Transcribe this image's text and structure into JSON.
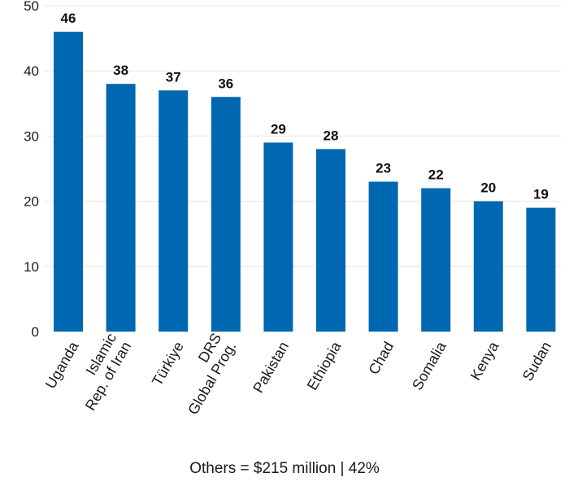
{
  "chart_data": {
    "type": "bar",
    "title": "",
    "xlabel": "",
    "ylabel": "",
    "categories": [
      [
        "Uganda"
      ],
      [
        "Islamic",
        "Rep. of Iran"
      ],
      [
        "Türkiye"
      ],
      [
        "DRS",
        "Global Prog."
      ],
      [
        "Pakistan"
      ],
      [
        "Ethiopia"
      ],
      [
        "Chad"
      ],
      [
        "Somalia"
      ],
      [
        "Kenya"
      ],
      [
        "Sudan"
      ]
    ],
    "values": [
      46,
      38,
      37,
      36,
      29,
      28,
      23,
      22,
      20,
      19
    ],
    "ylim": [
      0,
      50
    ],
    "yticks": [
      0,
      10,
      20,
      30,
      40,
      50
    ],
    "grid": true,
    "bar_color": "#0067b1",
    "grid_color": "#e6e6e6"
  },
  "footnote": "Others = $215 million | 42%"
}
